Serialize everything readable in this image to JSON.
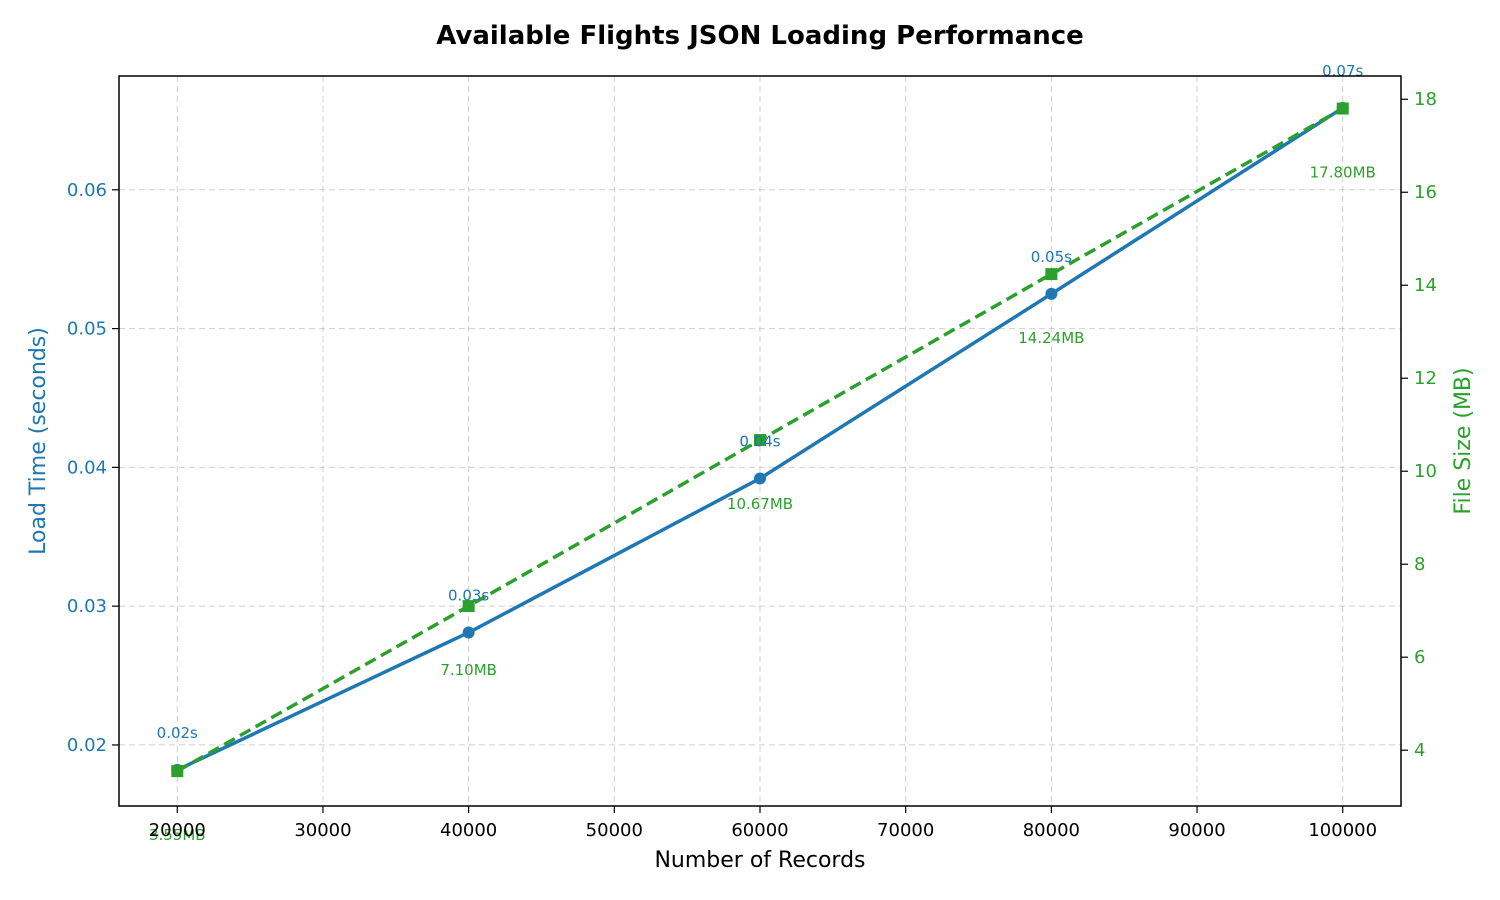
{
  "chart_data": {
    "type": "line",
    "title": "Available Flights JSON Loading Performance",
    "xlabel": "Number of Records",
    "ylabel_left": "Load Time (seconds)",
    "ylabel_right": "File Size (MB)",
    "x": [
      20000,
      40000,
      60000,
      80000,
      100000
    ],
    "x_ticks": [
      20000,
      30000,
      40000,
      50000,
      60000,
      70000,
      80000,
      90000,
      100000
    ],
    "x_tick_labels": [
      "20000",
      "30000",
      "40000",
      "50000",
      "60000",
      "70000",
      "80000",
      "90000",
      "100000"
    ],
    "xlim": [
      16000,
      104000
    ],
    "y_left_ticks": [
      0.02,
      0.03,
      0.04,
      0.05,
      0.06
    ],
    "y_left_tick_labels": [
      "0.02",
      "0.03",
      "0.04",
      "0.05",
      "0.06"
    ],
    "ylim_left": [
      0.0156,
      0.0682
    ],
    "y_right_ticks": [
      4,
      6,
      8,
      10,
      12,
      14,
      16,
      18
    ],
    "y_right_tick_labels": [
      "4",
      "6",
      "8",
      "10",
      "12",
      "14",
      "16",
      "18"
    ],
    "ylim_right": [
      2.8,
      18.5
    ],
    "grid": true,
    "series": [
      {
        "name": "Load Time",
        "axis": "left",
        "color": "#1f77b4",
        "marker": "circle",
        "line_style": "solid",
        "values": [
          0.0182,
          0.0281,
          0.0392,
          0.0525,
          0.0659
        ],
        "labels": [
          "0.02s",
          "0.03s",
          "0.04s",
          "0.05s",
          "0.07s"
        ]
      },
      {
        "name": "File Size",
        "axis": "right",
        "color": "#2ca02c",
        "marker": "square",
        "line_style": "dashed",
        "values": [
          3.55,
          7.1,
          10.67,
          14.24,
          17.8
        ],
        "labels": [
          "3.55MB",
          "7.10MB",
          "10.67MB",
          "14.24MB",
          "17.80MB"
        ]
      }
    ]
  }
}
